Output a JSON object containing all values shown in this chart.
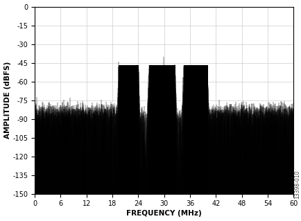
{
  "xlim": [
    0,
    60
  ],
  "ylim": [
    -150,
    0
  ],
  "xticks": [
    0,
    6,
    12,
    18,
    24,
    30,
    36,
    42,
    48,
    54,
    60
  ],
  "yticks": [
    0,
    -15,
    -30,
    -45,
    -60,
    -75,
    -90,
    -105,
    -120,
    -135,
    -150
  ],
  "xlabel": "FREQUENCY (MHz)",
  "ylabel": "AMPLITUDE (dBFS)",
  "watermark": "13398-010",
  "noise_floor_base": -84,
  "noise_std_base": 3.5,
  "signal_bands": [
    {
      "f_lo": 19.5,
      "f_hi": 24.0,
      "peak": -47,
      "peak_std": 3.0
    },
    {
      "f_lo": 26.5,
      "f_hi": 32.5,
      "peak": -47,
      "peak_std": 3.0
    },
    {
      "f_lo": 34.5,
      "f_hi": 40.0,
      "peak": -47,
      "peak_std": 3.0
    }
  ],
  "notch_regions": [
    {
      "f_lo": 24.0,
      "f_hi": 26.5,
      "floor": -88,
      "std": 4,
      "spike_depth": 20
    },
    {
      "f_lo": 32.5,
      "f_hi": 34.5,
      "floor": -88,
      "std": 4,
      "spike_depth": 15
    }
  ],
  "line_color": "#000000",
  "background_color": "#ffffff",
  "grid_color": "#cccccc",
  "figsize": [
    4.35,
    3.19
  ],
  "dpi": 100
}
